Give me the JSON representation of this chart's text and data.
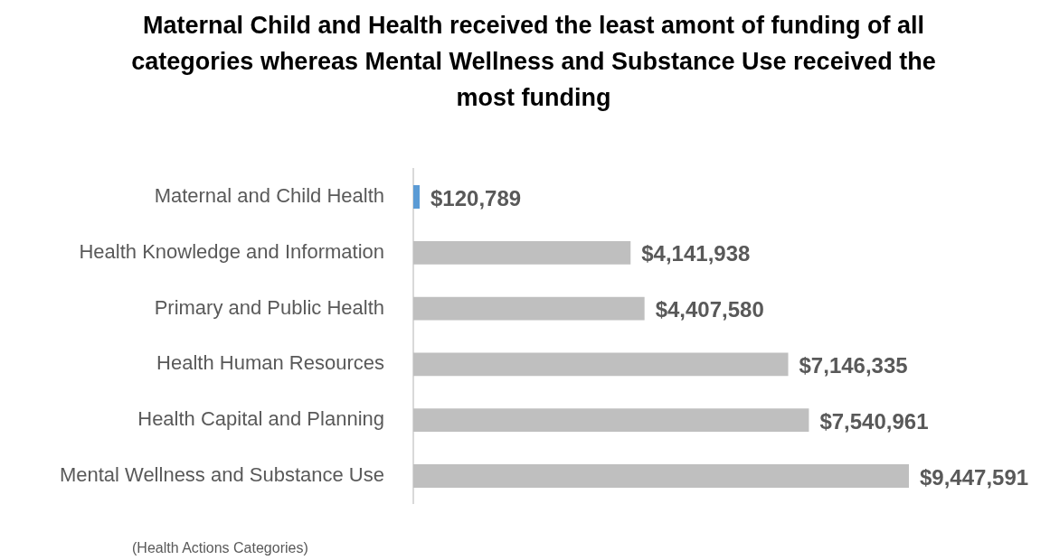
{
  "chart_data": {
    "type": "bar",
    "orientation": "horizontal",
    "title": "Maternal Child and Health received the least amont of funding of all categories whereas Mental Wellness and Substance Use received the most funding",
    "ylabel": "(Health Actions Categories)",
    "categories": [
      "Maternal and Child Health",
      "Health Knowledge and Information",
      "Primary and Public Health",
      "Health Human Resources",
      "Health Capital and Planning",
      "Mental Wellness and Substance Use"
    ],
    "values": [
      120789,
      4141938,
      4407580,
      7146335,
      7540961,
      9447591
    ],
    "colors": [
      "#5b9bd5",
      "#bfbfbf",
      "#bfbfbf",
      "#bfbfbf",
      "#bfbfbf",
      "#bfbfbf"
    ],
    "value_labels": [
      "$120,789",
      "$4,141,938",
      "$4,407,580",
      "$7,146,335",
      "$7,540,961",
      "$9,447,591"
    ],
    "legend": false
  }
}
